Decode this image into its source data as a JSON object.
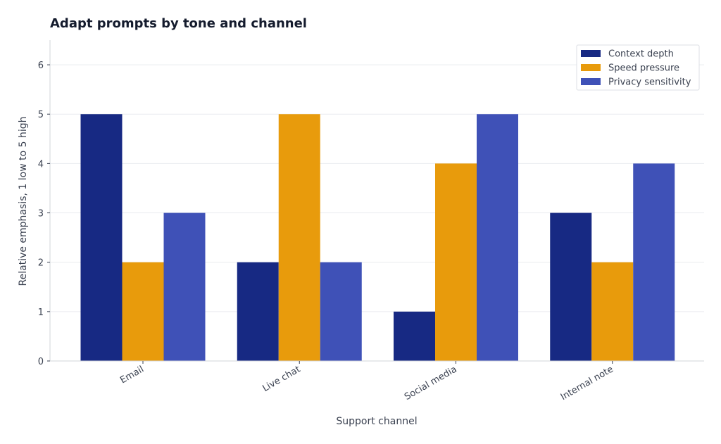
{
  "chart_data": {
    "type": "bar",
    "title": "Adapt prompts by tone and channel",
    "xlabel": "Support channel",
    "ylabel": "Relative emphasis, 1 low to 5 high",
    "categories": [
      "Email",
      "Live chat",
      "Social media",
      "Internal note"
    ],
    "series": [
      {
        "name": "Context depth",
        "values": [
          5,
          2,
          1,
          3
        ],
        "color": "#172983"
      },
      {
        "name": "Speed pressure",
        "values": [
          2,
          5,
          4,
          2
        ],
        "color": "#e89b0c"
      },
      {
        "name": "Privacy sensitivity",
        "values": [
          3,
          2,
          5,
          4
        ],
        "color": "#3f51b7"
      }
    ],
    "ylim": [
      0,
      6.5
    ],
    "yticks": [
      0,
      1,
      2,
      3,
      4,
      5,
      6
    ],
    "grid": true,
    "legend_position": "top-right"
  }
}
